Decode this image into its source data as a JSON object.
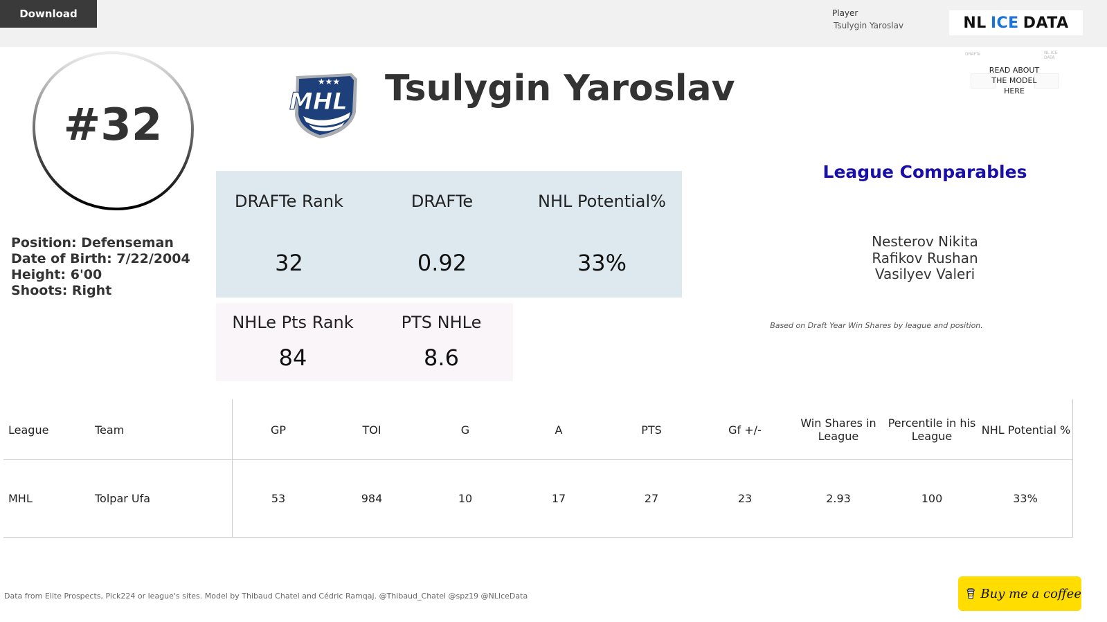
{
  "toolbar": {
    "download_label": "Download"
  },
  "filter": {
    "label": "Player",
    "value": "Tsulygin Yaroslav"
  },
  "brand": {
    "part1": "NL",
    "part2": "ICE",
    "part3": "DATA"
  },
  "player": {
    "number": "#32",
    "name": "Tsulygin Yaroslav",
    "league_logo_text": "MHL",
    "info": [
      "Position: Defenseman",
      "Date of Birth: 7/22/2004",
      "Height: 6'00",
      "Shoots: Right"
    ]
  },
  "read_model": {
    "label": "READ ABOUT THE MODEL HERE",
    "faint_left": "DRAFTe",
    "faint_right": "NL ICE DATA"
  },
  "metrics": {
    "drafte_rank": {
      "label": "DRAFTe Rank",
      "value": "32"
    },
    "drafte": {
      "label": "DRAFTe",
      "value": "0.92"
    },
    "nhl_potential": {
      "label": "NHL Potential%",
      "value": "33%"
    },
    "nhle_pts_rank": {
      "label": "NHLe Pts Rank",
      "value": "84"
    },
    "pts_nhle": {
      "label": "PTS NHLe",
      "value": "8.6"
    }
  },
  "comparables": {
    "title": "League Comparables",
    "names": [
      "Nesterov Nikita",
      "Rafikov Rushan",
      "Vasilyev Valeri"
    ],
    "note": "Based on Draft Year Win Shares by league and position."
  },
  "table": {
    "headers": {
      "league": "League",
      "team": "Team",
      "gp": "GP",
      "toi": "TOI",
      "g": "G",
      "a": "A",
      "pts": "PTS",
      "gf": "Gf +/-",
      "ws1": "Win Shares in",
      "ws2": "League",
      "pct1": "Percentile in his",
      "pct2": "League",
      "nhlp": "NHL Potential %"
    },
    "row": {
      "league": "MHL",
      "team": "Tolpar Ufa",
      "gp": "53",
      "toi": "984",
      "g": "10",
      "a": "17",
      "pts": "27",
      "gf": "23",
      "ws": "2.93",
      "pct": "100",
      "nhlp": "33%"
    }
  },
  "footer": {
    "credits": "Data from Elite Prospects, Pick224 or league's sites. Model by Thibaud Chatel and Cédric Ramqaj. @Thibaud_Chatel @spz19 @NLIceData",
    "coffee_label": "Buy me a coffee"
  },
  "colors": {
    "topbar": "#f1f1f1",
    "download_bg": "#3a3a3a",
    "brand_ice": "#1a73d9",
    "metrics_top_bg": "#dde9ee",
    "metrics_bottom_bg": "#faf5f8",
    "comparables_title": "#1a0fa6",
    "coffee_bg": "#ffdd00"
  }
}
